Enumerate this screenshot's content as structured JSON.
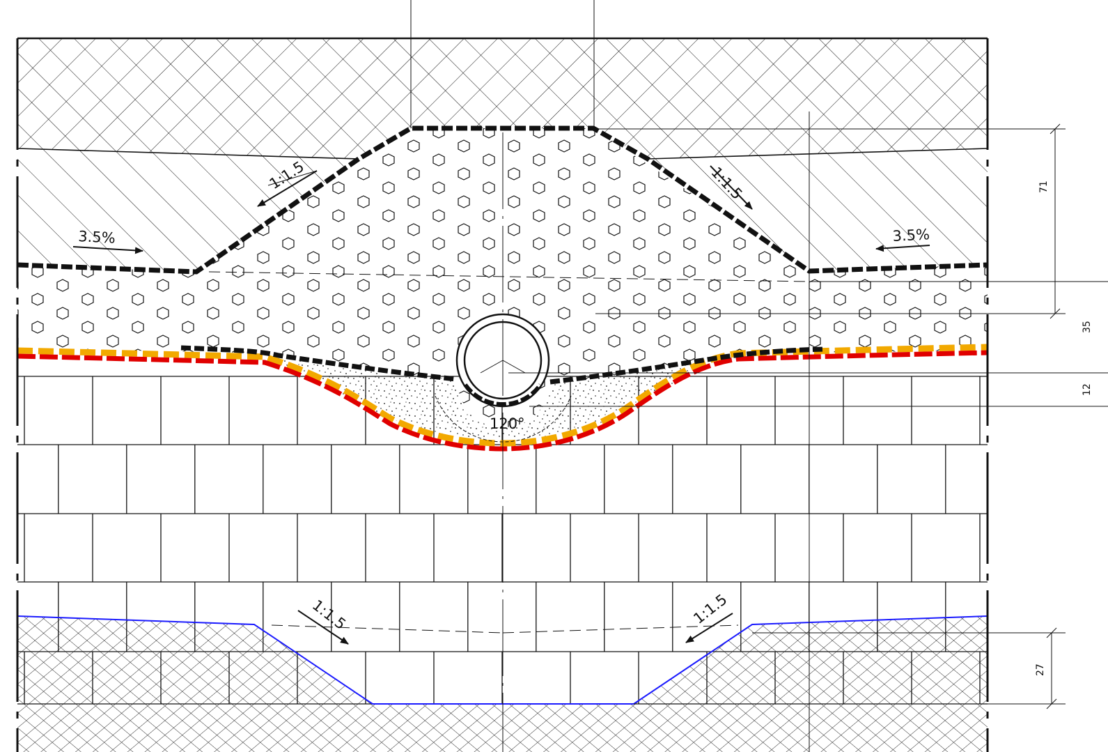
{
  "annotations": {
    "slope_left_top": "1:1.5",
    "slope_right_top": "1:1.5",
    "grade_left": "3.5%",
    "grade_right": "3.5%",
    "pipe_angle": "120°",
    "slope_left_bottom": "1:1.5",
    "slope_right_bottom": "1:1.5"
  },
  "dimensions": {
    "d71": "71",
    "d35": "35",
    "d12": "12",
    "d27": "27"
  },
  "colors": {
    "line": "#000000",
    "membrane_red": "#e00000",
    "membrane_yellow": "#f2a900",
    "excavation_blue": "#1a1aff"
  }
}
